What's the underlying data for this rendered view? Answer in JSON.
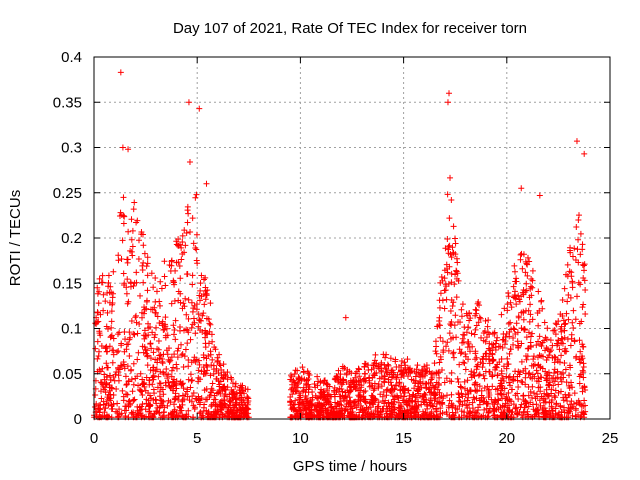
{
  "chart_data": {
    "type": "scatter",
    "title": "Day 107 of 2021, Rate Of TEC Index for receiver torn",
    "xlabel": "GPS time / hours",
    "ylabel": "ROTI / TECUs",
    "xlim": [
      0,
      25
    ],
    "ylim": [
      0,
      0.4
    ],
    "x_ticks": [
      0,
      5,
      10,
      15,
      20,
      25
    ],
    "x_tick_labels": [
      "0",
      "5",
      "10",
      "15",
      "20",
      "25"
    ],
    "y_ticks": [
      0,
      0.05,
      0.1,
      0.15,
      0.2,
      0.25,
      0.3,
      0.35,
      0.4
    ],
    "y_tick_labels": [
      "0",
      "0.05",
      "0.1",
      "0.15",
      "0.2",
      "0.25",
      "0.3",
      "0.35",
      "0.4"
    ],
    "grid": true,
    "marker": "plus",
    "color": "#ff0000",
    "segments": [
      {
        "x_start": 0.0,
        "x_end": 7.5,
        "description_values": "dense"
      },
      {
        "x_start": 9.5,
        "x_end": 16.5,
        "description_values": "dense"
      },
      {
        "x_start": 16.5,
        "x_end": 23.8,
        "description_values": "dense"
      }
    ],
    "envelope": [
      [
        0.0,
        0.12
      ],
      [
        0.3,
        0.17
      ],
      [
        0.6,
        0.15
      ],
      [
        1.0,
        0.2
      ],
      [
        1.3,
        0.26
      ],
      [
        1.6,
        0.24
      ],
      [
        2.0,
        0.25
      ],
      [
        2.3,
        0.22
      ],
      [
        2.7,
        0.17
      ],
      [
        3.0,
        0.16
      ],
      [
        3.4,
        0.18
      ],
      [
        3.8,
        0.19
      ],
      [
        4.2,
        0.21
      ],
      [
        4.6,
        0.24
      ],
      [
        5.0,
        0.25
      ],
      [
        5.3,
        0.18
      ],
      [
        5.7,
        0.12
      ],
      [
        6.0,
        0.08
      ],
      [
        6.5,
        0.05
      ],
      [
        7.0,
        0.04
      ],
      [
        7.5,
        0.035
      ],
      [
        9.5,
        0.05
      ],
      [
        10.0,
        0.06
      ],
      [
        10.5,
        0.05
      ],
      [
        11.0,
        0.045
      ],
      [
        11.5,
        0.04
      ],
      [
        12.0,
        0.06
      ],
      [
        12.5,
        0.05
      ],
      [
        13.0,
        0.06
      ],
      [
        13.5,
        0.07
      ],
      [
        14.0,
        0.075
      ],
      [
        14.5,
        0.065
      ],
      [
        15.0,
        0.07
      ],
      [
        15.5,
        0.06
      ],
      [
        16.0,
        0.06
      ],
      [
        16.5,
        0.07
      ],
      [
        16.9,
        0.2
      ],
      [
        17.2,
        0.28
      ],
      [
        17.5,
        0.2
      ],
      [
        17.8,
        0.13
      ],
      [
        18.2,
        0.12
      ],
      [
        18.6,
        0.13
      ],
      [
        19.0,
        0.12
      ],
      [
        19.4,
        0.1
      ],
      [
        19.8,
        0.12
      ],
      [
        20.2,
        0.15
      ],
      [
        20.6,
        0.2
      ],
      [
        21.0,
        0.18
      ],
      [
        21.4,
        0.16
      ],
      [
        21.8,
        0.12
      ],
      [
        22.2,
        0.1
      ],
      [
        22.6,
        0.12
      ],
      [
        23.0,
        0.18
      ],
      [
        23.4,
        0.24
      ],
      [
        23.8,
        0.2
      ]
    ],
    "outliers": [
      {
        "x": 1.3,
        "y": 0.383
      },
      {
        "x": 1.4,
        "y": 0.3
      },
      {
        "x": 1.65,
        "y": 0.298
      },
      {
        "x": 4.6,
        "y": 0.35
      },
      {
        "x": 5.1,
        "y": 0.343
      },
      {
        "x": 4.65,
        "y": 0.284
      },
      {
        "x": 5.45,
        "y": 0.26
      },
      {
        "x": 12.2,
        "y": 0.112
      },
      {
        "x": 17.2,
        "y": 0.36
      },
      {
        "x": 17.15,
        "y": 0.35
      },
      {
        "x": 23.4,
        "y": 0.307
      },
      {
        "x": 23.75,
        "y": 0.293
      },
      {
        "x": 20.7,
        "y": 0.255
      },
      {
        "x": 21.6,
        "y": 0.247
      }
    ]
  }
}
